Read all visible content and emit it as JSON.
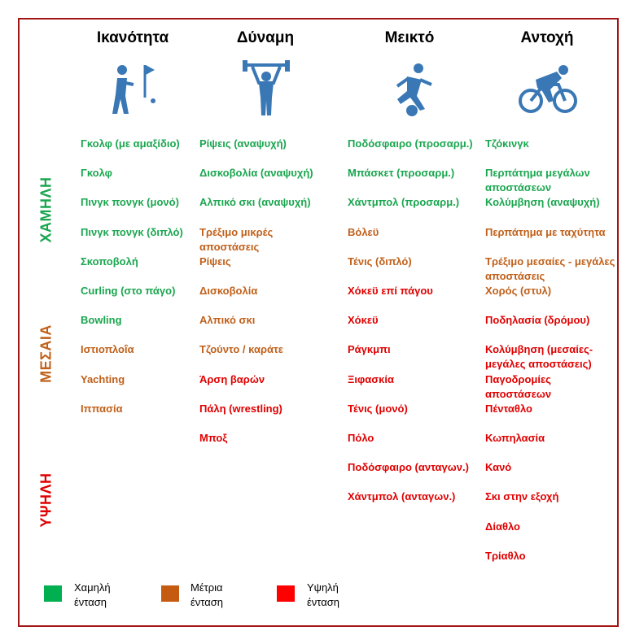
{
  "columns": [
    {
      "title": "Ικανότητα",
      "items": [
        {
          "text": "Γκολφ (με αμαξίδιο)",
          "color": "#1aa64f"
        },
        {
          "text": "Γκολφ",
          "color": "#1aa64f"
        },
        {
          "text": "Πινγκ πονγκ (μονό)",
          "color": "#1aa64f"
        },
        {
          "text": "Πινγκ πονγκ (διπλό)",
          "color": "#1aa64f"
        },
        {
          "text": "Σκοποβολή",
          "color": "#1aa64f"
        },
        {
          "text": "Curling (στο πάγο)",
          "color": "#1aa64f"
        },
        {
          "text": "Bowling",
          "color": "#1aa64f"
        },
        {
          "text": "Ιστιοπλοΐα",
          "color": "#c0601a"
        },
        {
          "text": "Yachting",
          "color": "#c0601a"
        },
        {
          "text": "Ιππασία",
          "color": "#c0601a"
        }
      ]
    },
    {
      "title": "Δύναμη",
      "items": [
        {
          "text": "Ρίψεις (αναψυχή)",
          "color": "#1aa64f"
        },
        {
          "text": "Δισκοβολία (αναψυχή)",
          "color": "#1aa64f"
        },
        {
          "text": "Αλπικό σκι (αναψυχή)",
          "color": "#1aa64f"
        },
        {
          "text": "Τρέξιμο μικρές αποστάσεις",
          "color": "#c0601a"
        },
        {
          "text": "Ρίψεις",
          "color": "#c0601a"
        },
        {
          "text": "Δισκοβολία",
          "color": "#c0601a"
        },
        {
          "text": "Αλπικό σκι",
          "color": "#c0601a"
        },
        {
          "text": "Τζούντο / καράτε",
          "color": "#c0601a"
        },
        {
          "text": "Άρση βαρών",
          "color": "#e00000"
        },
        {
          "text": "Πάλη (wrestling)",
          "color": "#e00000"
        },
        {
          "text": "Μποξ",
          "color": "#e00000"
        }
      ]
    },
    {
      "title": "Μεικτό",
      "items": [
        {
          "text": "Ποδόσφαιρο (προσαρμ.)",
          "color": "#1aa64f"
        },
        {
          "text": "Μπάσκετ (προσαρμ.)",
          "color": "#1aa64f"
        },
        {
          "text": "Χάντμπολ (προσαρμ.)",
          "color": "#1aa64f"
        },
        {
          "text": "Βόλεϋ",
          "color": "#c0601a"
        },
        {
          "text": "Τένις (διπλό)",
          "color": "#c0601a"
        },
        {
          "text": "Χόκεϋ επί πάγου",
          "color": "#e00000"
        },
        {
          "text": "Χόκεϋ",
          "color": "#e00000"
        },
        {
          "text": "Ράγκμπι",
          "color": "#e00000"
        },
        {
          "text": "Ξιφασκία",
          "color": "#e00000"
        },
        {
          "text": "Τένις (μονό)",
          "color": "#e00000"
        },
        {
          "text": "Πόλο",
          "color": "#e00000"
        },
        {
          "text": "Ποδόσφαιρο (ανταγων.)",
          "color": "#e00000"
        },
        {
          "text": "Χάντμπολ (ανταγων.)",
          "color": "#e00000"
        }
      ]
    },
    {
      "title": "Αντοχή",
      "items": [
        {
          "text": "Τζόκινγκ",
          "color": "#1aa64f"
        },
        {
          "text": "Περπάτημα μεγάλων αποστάσεων",
          "color": "#1aa64f"
        },
        {
          "text": "Κολύμβηση (αναψυχή)",
          "color": "#1aa64f"
        },
        {
          "text": "Περπάτημα με ταχύτητα",
          "color": "#c0601a"
        },
        {
          "text": "Τρέξιμο μεσαίες - μεγάλες αποστάσεις",
          "color": "#c0601a"
        },
        {
          "text": "Χορός (στυλ)",
          "color": "#c0601a"
        },
        {
          "text": "Ποδηλασία (δρόμου)",
          "color": "#e00000"
        },
        {
          "text": "Κολύμβηση (μεσαίες- μεγάλες αποστάσεις)",
          "color": "#e00000"
        },
        {
          "text": "Παγοδρομίες αποστάσεων",
          "color": "#e00000"
        },
        {
          "text": "Πένταθλο",
          "color": "#e00000"
        },
        {
          "text": "Κωπηλασία",
          "color": "#e00000"
        },
        {
          "text": "Κανό",
          "color": "#e00000"
        },
        {
          "text": "Σκι στην εξοχή",
          "color": "#e00000"
        },
        {
          "text": "Δίαθλο",
          "color": "#e00000"
        },
        {
          "text": "Τρίαθλο",
          "color": "#e00000"
        }
      ]
    }
  ],
  "levels": [
    {
      "label": "ΧΑΜΗΛΗ",
      "color": "#1aa64f"
    },
    {
      "label": "ΜΕΣΑΙΑ",
      "color": "#c0601a"
    },
    {
      "label": "ΥΨΗΛΗ",
      "color": "#e00000"
    }
  ],
  "legend": [
    {
      "label": "Χαμηλή ένταση",
      "color": "#00b050"
    },
    {
      "label": "Μέτρια ένταση",
      "color": "#c55a11"
    },
    {
      "label": "Υψηλή ένταση",
      "color": "#ff0000"
    }
  ]
}
